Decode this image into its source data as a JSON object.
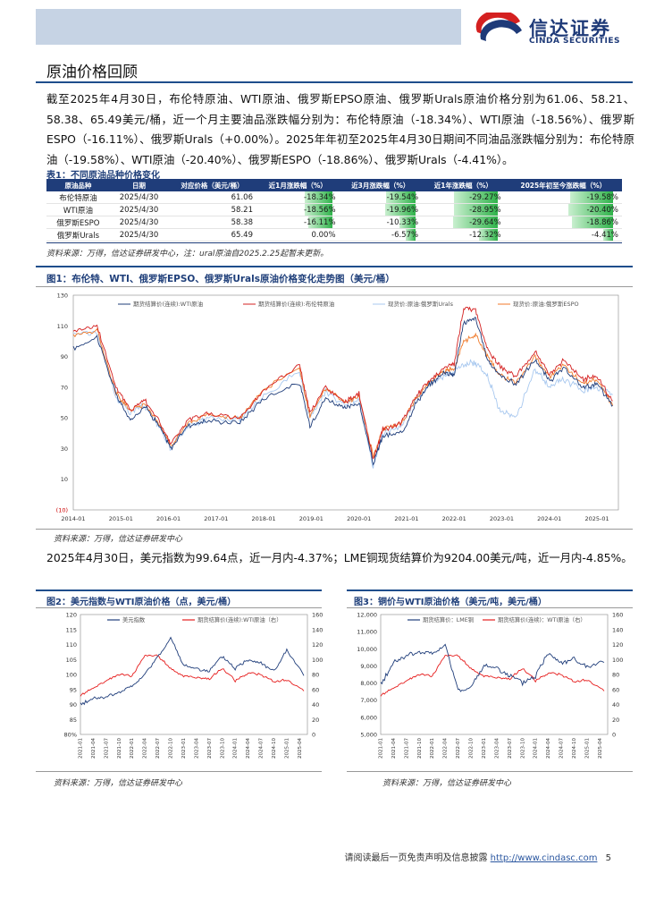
{
  "header": {
    "logo_cn": "信达证券",
    "logo_en": "CINDA SECURITIES"
  },
  "section_title": "原油价格回顾",
  "paragraph1": "截至2025年4月30日，布伦特原油、WTI原油、俄罗斯EPSO原油、俄罗斯Urals原油价格分别为61.06、58.21、58.38、65.49美元/桶，近一个月主要油品涨跌幅分别为：布伦特原油（-18.34%）、WTI原油（-18.56%）、俄罗斯ESPO（-16.11%）、俄罗斯Urals（+0.00%）。2025年年初至2025年4月30日期间不同油品涨跌幅分别为：布伦特原油（-19.58%）、WTI原油（-20.40%）、俄罗斯ESPO（-18.86%）、俄罗斯Urals（-4.41%）。",
  "table1": {
    "caption": "表1：不同原油品种价格变化",
    "headers": [
      "原油品种",
      "日期",
      "对应价格（美元/桶）",
      "近1月涨跌幅（%）",
      "近3月涨跌幅（%）",
      "近1年涨跌幅（%）",
      "2025年初至今涨跌幅（%）"
    ],
    "rows": [
      [
        "布伦特原油",
        "2025/4/30",
        "61.06",
        "-18.34%",
        "-19.54%",
        "-29.27%",
        "-19.58%"
      ],
      [
        "WTI原油",
        "2025/4/30",
        "58.21",
        "-18.56%",
        "-19.96%",
        "-28.95%",
        "-20.40%"
      ],
      [
        "俄罗斯ESPO",
        "2025/4/30",
        "58.38",
        "-16.11%",
        "-10.33%",
        "-29.64%",
        "-18.86%"
      ],
      [
        "俄罗斯Urals",
        "2025/4/30",
        "65.49",
        "0.00%",
        "-6.57%",
        "-12.32%",
        "-4.41%"
      ]
    ],
    "source": "资料来源：万得，信达证券研发中心，注：ural原油自2025.2.25起暂未更新。"
  },
  "figure1": {
    "caption": "图1：布伦特、WTI、俄罗斯EPSO、俄罗斯Urals原油价格变化走势图（美元/桶）",
    "source": "资料来源：万得，信达证券研发中心"
  },
  "paragraph2": "2025年4月30日，美元指数为99.64点，近一月内-4.37%；LME铜现货结算价为9204.00美元/吨，近一月内-4.85%。",
  "figure2": {
    "caption": "图2：美元指数与WTI原油价格（点，美元/桶）",
    "source": "资料来源：万得，信达证券研发中心"
  },
  "figure3": {
    "caption": "图3：铜价与WTI原油价格（美元/吨，美元/桶）",
    "source": "资料来源：万得，信达证券研发中心"
  },
  "footer": {
    "disclaimer": "请阅读最后一页免责声明及信息披露",
    "url": "http://www.cindasc.com",
    "page": "5"
  },
  "colors": {
    "navy": "#1f3d7a",
    "red": "#d42020",
    "orange": "#f07a2a",
    "lightblue": "#8fb8e8",
    "green": "#2fb34a"
  },
  "chart_data": [
    {
      "type": "line",
      "title": "布伦特、WTI、俄罗斯EPSO、俄罗斯Urals原油价格变化走势图（美元/桶）",
      "legend": [
        "期货结算价(连续):WTI原油",
        "期货结算价(连续):布伦特原油",
        "现货价:原油:俄罗斯Urals",
        "现货价:原油:俄罗斯ESPO"
      ],
      "x_ticks": [
        "2014-01",
        "2015-01",
        "2016-01",
        "2017-01",
        "2018-01",
        "2019-01",
        "2020-01",
        "2021-01",
        "2022-01",
        "2023-01",
        "2024-01",
        "2025-01"
      ],
      "y_ticks": [
        "(10)",
        "10",
        "30",
        "50",
        "70",
        "90",
        "110",
        "130"
      ],
      "ylim": [
        -10,
        130
      ],
      "x": [
        2014.0,
        2014.5,
        2014.9,
        2015.2,
        2015.5,
        2015.8,
        2016.05,
        2016.4,
        2016.8,
        2017.5,
        2018.0,
        2018.75,
        2018.97,
        2019.3,
        2019.7,
        2020.0,
        2020.3,
        2020.5,
        2020.9,
        2021.2,
        2021.5,
        2021.8,
        2022.0,
        2022.2,
        2022.45,
        2022.7,
        2022.95,
        2023.3,
        2023.7,
        2024.0,
        2024.3,
        2024.7,
        2025.0,
        2025.33
      ],
      "series": [
        {
          "name": "期货结算价(连续):WTI原油",
          "values": [
            95,
            103,
            65,
            48,
            58,
            45,
            30,
            45,
            48,
            47,
            63,
            73,
            45,
            63,
            56,
            60,
            20,
            38,
            40,
            60,
            72,
            80,
            78,
            112,
            115,
            88,
            78,
            72,
            88,
            74,
            82,
            70,
            72,
            58
          ]
        },
        {
          "name": "期货结算价(连续):布伦特原油",
          "values": [
            107,
            110,
            70,
            55,
            62,
            48,
            33,
            48,
            53,
            50,
            68,
            85,
            53,
            70,
            60,
            66,
            22,
            42,
            47,
            64,
            75,
            83,
            85,
            122,
            120,
            95,
            84,
            77,
            93,
            78,
            88,
            75,
            77,
            61
          ]
        },
        {
          "name": "现货价:原油:俄罗斯Urals",
          "values": [
            105,
            106,
            63,
            54,
            58,
            44,
            30,
            44,
            50,
            49,
            65,
            80,
            50,
            67,
            58,
            63,
            18,
            40,
            45,
            62,
            72,
            78,
            80,
            85,
            86,
            78,
            55,
            50,
            82,
            70,
            75,
            68,
            70,
            65
          ]
        },
        {
          "name": "现货价:原油:俄罗斯ESPO",
          "values": [
            104,
            107,
            66,
            55,
            59,
            46,
            32,
            46,
            52,
            50,
            68,
            83,
            51,
            69,
            60,
            64,
            25,
            42,
            47,
            63,
            74,
            81,
            82,
            100,
            104,
            90,
            78,
            73,
            90,
            77,
            84,
            72,
            75,
            58
          ]
        }
      ]
    },
    {
      "type": "line",
      "title": "美元指数与WTI原油价格（点，美元/桶）",
      "legend": [
        "美元指数",
        "期货结算价(连续):WTI原油（右）"
      ],
      "x_ticks": [
        "2021-01",
        "2021-04",
        "2021-07",
        "2021-10",
        "2022-01",
        "2022-04",
        "2022-07",
        "2022-10",
        "2023-01",
        "2023-04",
        "2023-07",
        "2023-10",
        "2024-01",
        "2024-04",
        "2024-07",
        "2024-10",
        "2025-01",
        "2025-04"
      ],
      "y_left_ticks": [
        "80%",
        "85",
        "90",
        "95",
        "100",
        "105",
        "110",
        "115",
        "120"
      ],
      "y_right_ticks": [
        "0",
        "20",
        "40",
        "60",
        "80",
        "100",
        "120",
        "140",
        "160"
      ],
      "ylim_left": [
        80,
        120
      ],
      "ylim_right": [
        0,
        160
      ],
      "x": [
        2021.0,
        2021.25,
        2021.5,
        2021.75,
        2022.0,
        2022.25,
        2022.5,
        2022.75,
        2023.0,
        2023.25,
        2023.5,
        2023.75,
        2024.0,
        2024.25,
        2024.5,
        2024.75,
        2025.0,
        2025.33
      ],
      "series": [
        {
          "name": "美元指数",
          "values": [
            90,
            92,
            92.5,
            94,
            96,
            100,
            106,
            112,
            103,
            102,
            101,
            106,
            102,
            105,
            104,
            101,
            108,
            99.6
          ]
        },
        {
          "name": "期货结算价(连续):WTI原油（右）",
          "values": [
            52,
            62,
            72,
            80,
            78,
            105,
            105,
            88,
            78,
            76,
            74,
            88,
            72,
            82,
            80,
            70,
            73,
            58
          ]
        }
      ]
    },
    {
      "type": "line",
      "title": "铜价与WTI原油价格（美元/吨，美元/桶）",
      "legend": [
        "期货结算价：LME铜",
        "期货结算价(连续)：WTI原油（右）"
      ],
      "x_ticks": [
        "2021-01",
        "2021-04",
        "2021-07",
        "2021-10",
        "2022-01",
        "2022-04",
        "2022-07",
        "2022-10",
        "2023-01",
        "2023-04",
        "2023-07",
        "2023-10",
        "2024-01",
        "2024-04",
        "2024-07",
        "2024-10",
        "2025-01",
        "2025-04"
      ],
      "y_left_ticks": [
        "5,000",
        "6,000",
        "7,000",
        "8,000",
        "9,000",
        "10,000",
        "11,000",
        "12,000"
      ],
      "y_right_ticks": [
        "0",
        "20",
        "40",
        "60",
        "80",
        "100",
        "120",
        "140",
        "160"
      ],
      "ylim_left": [
        5000,
        12000
      ],
      "ylim_right": [
        0,
        160
      ],
      "x": [
        2021.0,
        2021.25,
        2021.5,
        2021.75,
        2022.0,
        2022.25,
        2022.5,
        2022.75,
        2023.0,
        2023.25,
        2023.5,
        2023.75,
        2024.0,
        2024.25,
        2024.5,
        2024.75,
        2025.0,
        2025.33
      ],
      "series": [
        {
          "name": "期货结算价：LME铜",
          "values": [
            7900,
            9200,
            9600,
            9800,
            9700,
            10200,
            7600,
            7700,
            9000,
            8900,
            8400,
            8000,
            8400,
            9800,
            9200,
            9400,
            8900,
            9204
          ]
        },
        {
          "name": "期货结算价(连续)：WTI原油（右）",
          "values": [
            52,
            62,
            72,
            80,
            78,
            105,
            105,
            88,
            78,
            76,
            74,
            88,
            72,
            82,
            80,
            70,
            73,
            58
          ]
        }
      ]
    }
  ]
}
